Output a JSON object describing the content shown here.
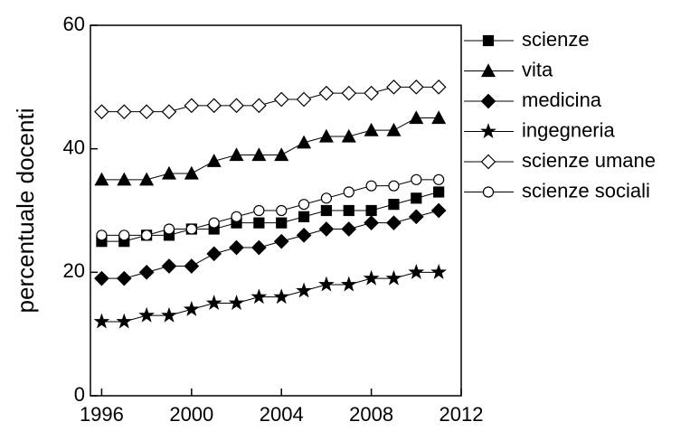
{
  "chart_data": {
    "type": "line",
    "y_label": "percentuale docenti",
    "x": [
      1996,
      1997,
      1998,
      1999,
      2000,
      2001,
      2002,
      2003,
      2004,
      2005,
      2006,
      2007,
      2008,
      2009,
      2010,
      2011
    ],
    "xlim": [
      1995.5,
      2012
    ],
    "xticks": [
      1996,
      2000,
      2004,
      2008,
      2012
    ],
    "ylim": [
      0,
      60
    ],
    "yticks": [
      0,
      20,
      40,
      60
    ],
    "legend": "outside-right",
    "series": [
      {
        "name": "scienze",
        "color": "#000000",
        "marker": "square-filled",
        "values": [
          25,
          25,
          26,
          26,
          27,
          27,
          28,
          28,
          28,
          29,
          30,
          30,
          30,
          31,
          32,
          33
        ]
      },
      {
        "name": "vita",
        "color": "#000000",
        "marker": "triangle-filled",
        "values": [
          35,
          35,
          35,
          36,
          36,
          38,
          39,
          39,
          39,
          41,
          42,
          42,
          43,
          43,
          45,
          45
        ]
      },
      {
        "name": "medicina",
        "color": "#000000",
        "marker": "diamond-filled",
        "values": [
          19,
          19,
          20,
          21,
          21,
          23,
          24,
          24,
          25,
          26,
          27,
          27,
          28,
          28,
          29,
          30
        ]
      },
      {
        "name": "ingegneria",
        "color": "#000000",
        "marker": "star-filled",
        "values": [
          12,
          12,
          13,
          13,
          14,
          15,
          15,
          16,
          16,
          17,
          18,
          18,
          19,
          19,
          20,
          20
        ]
      },
      {
        "name": "scienze umane",
        "color": "#000000",
        "marker": "diamond-open",
        "values": [
          46,
          46,
          46,
          46,
          47,
          47,
          47,
          47,
          48,
          48,
          49,
          49,
          49,
          50,
          50,
          50
        ]
      },
      {
        "name": "scienze sociali",
        "color": "#000000",
        "marker": "circle-open",
        "values": [
          26,
          26,
          26,
          27,
          27,
          28,
          29,
          30,
          30,
          31,
          32,
          33,
          34,
          34,
          35,
          35
        ]
      }
    ]
  }
}
